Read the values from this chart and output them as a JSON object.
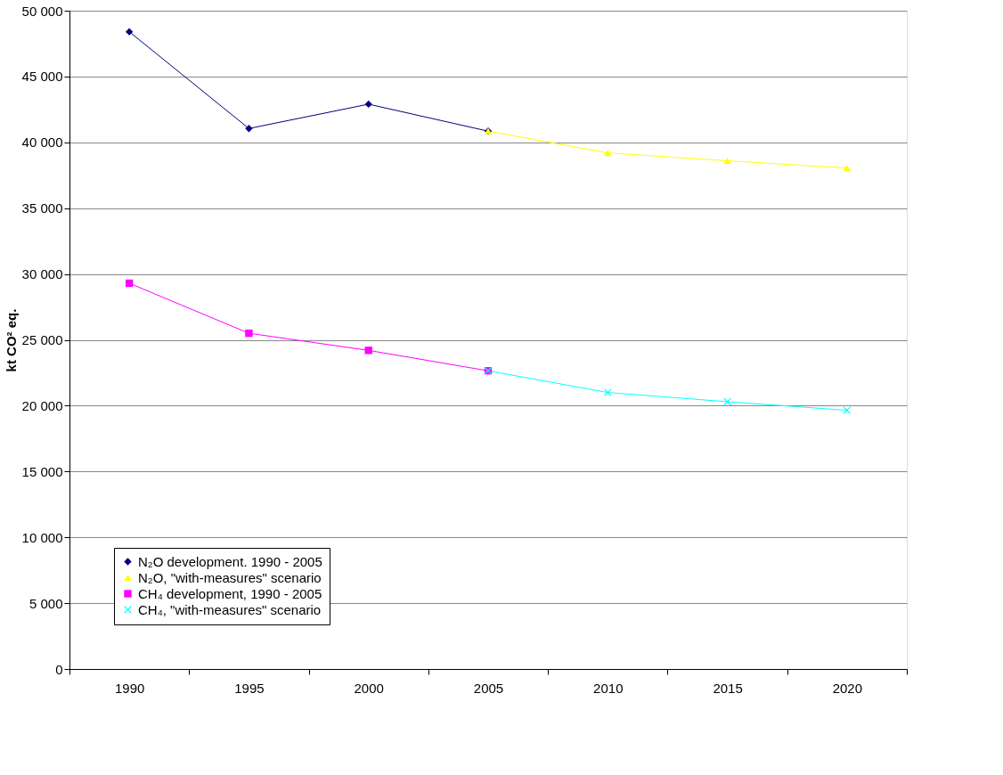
{
  "chart_data": {
    "type": "line",
    "ylabel": "kt CO² eq.",
    "categories": [
      "1990",
      "1995",
      "2000",
      "2005",
      "2010",
      "2015",
      "2020"
    ],
    "series": [
      {
        "name": "N₂O development. 1990 - 2005",
        "color": "#000080",
        "marker": "diamond",
        "values": [
          48400,
          41050,
          42900,
          40850,
          null,
          null,
          null
        ]
      },
      {
        "name": "N₂O, \"with-measures\" scenario",
        "color": "#ffff00",
        "marker": "triangle",
        "values": [
          null,
          null,
          null,
          40850,
          39200,
          38600,
          38050
        ]
      },
      {
        "name": "CH₄ development, 1990 - 2005",
        "color": "#ff00ff",
        "marker": "square",
        "values": [
          29300,
          25500,
          24200,
          22650,
          null,
          null,
          null
        ]
      },
      {
        "name": "CH₄, \"with-measures\" scenario",
        "color": "#00ffff",
        "marker": "cross",
        "values": [
          null,
          null,
          null,
          22650,
          21000,
          20300,
          19650
        ]
      }
    ],
    "ylim": [
      0,
      50000
    ],
    "yticks": [
      {
        "value": 0,
        "label": "0"
      },
      {
        "value": 5000,
        "label": "5 000"
      },
      {
        "value": 10000,
        "label": "10 000"
      },
      {
        "value": 15000,
        "label": "15 000"
      },
      {
        "value": 20000,
        "label": "20 000"
      },
      {
        "value": 25000,
        "label": "25 000"
      },
      {
        "value": 30000,
        "label": "30 000"
      },
      {
        "value": 35000,
        "label": "35 000"
      },
      {
        "value": 40000,
        "label": "40 000"
      },
      {
        "value": 45000,
        "label": "45 000"
      },
      {
        "value": 50000,
        "label": "50 000"
      }
    ],
    "grid": "y",
    "legend": "bottom left"
  }
}
